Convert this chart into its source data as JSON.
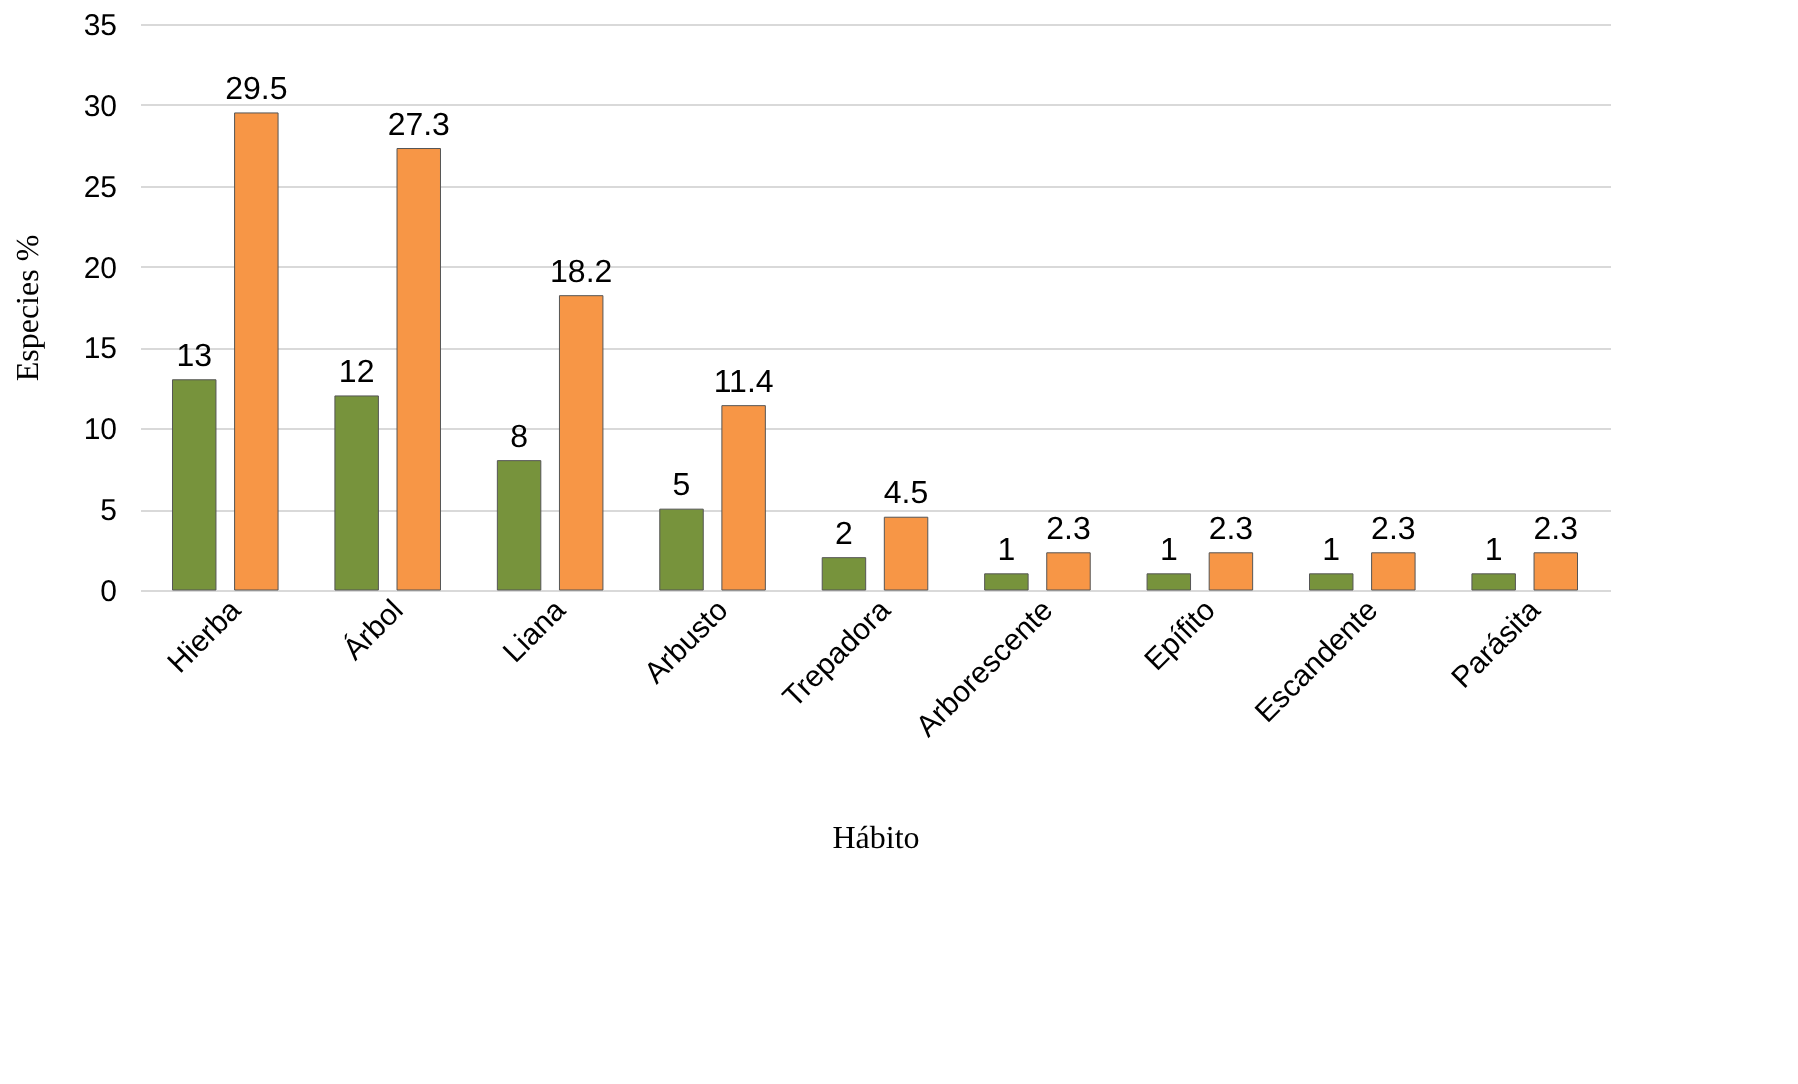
{
  "chart_data": {
    "type": "bar",
    "xlabel": "Hábito",
    "ylabel": "Especies    %",
    "categories": [
      "Hierba",
      "Árbol",
      "Liana",
      "Arbusto",
      "Trepadora",
      "Arborescente",
      "Epífito",
      "Escandente",
      "Parásita"
    ],
    "series": [
      {
        "color": "#77933c",
        "values": [
          13,
          12,
          8,
          5,
          2,
          1,
          1,
          1,
          1
        ]
      },
      {
        "color": "#f79646",
        "values": [
          29.5,
          27.3,
          18.2,
          11.4,
          4.5,
          2.3,
          2.3,
          2.3,
          2.3
        ]
      }
    ],
    "ylim": [
      0,
      35
    ],
    "yticks": [
      0,
      5,
      10,
      15,
      20,
      25,
      30,
      35
    ],
    "grid": "y",
    "data_labels": true,
    "legend": false
  }
}
